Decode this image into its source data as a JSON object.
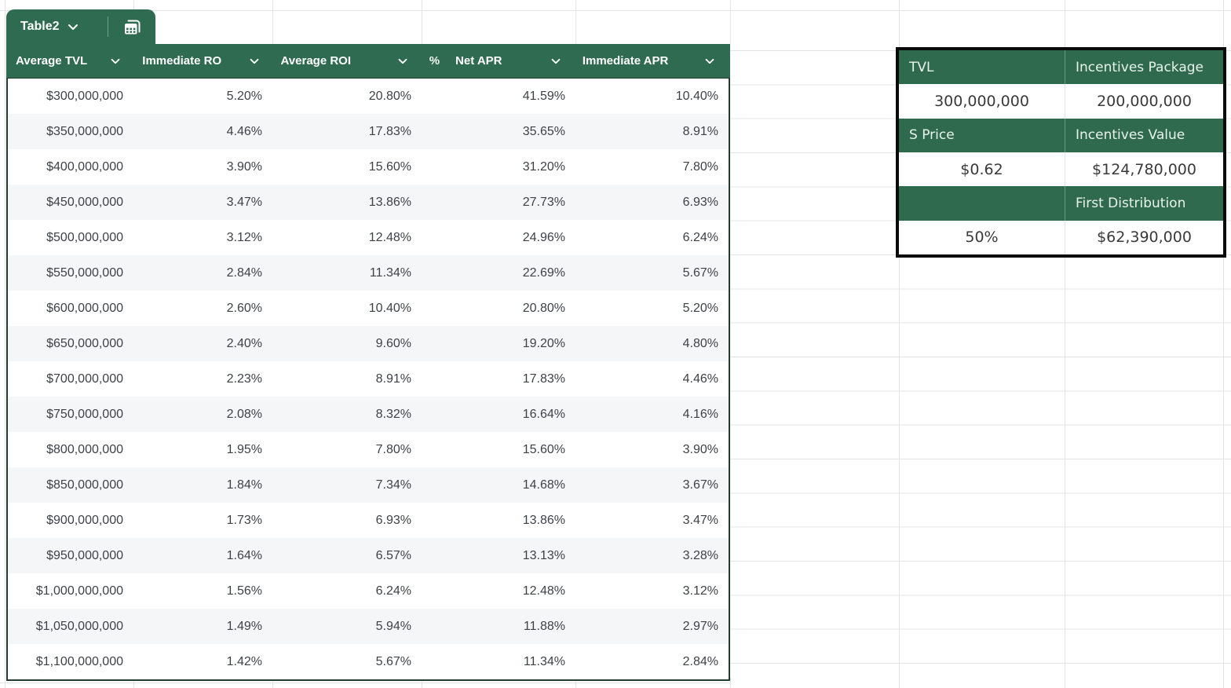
{
  "table_chip": {
    "name": "Table2"
  },
  "main_table": {
    "columns": [
      {
        "label": "Average TVL"
      },
      {
        "label": "Immediate RO"
      },
      {
        "label": "Average ROI"
      },
      {
        "label": "Net APR",
        "type_icon": "%"
      },
      {
        "label": "Immediate APR"
      }
    ],
    "rows": [
      [
        "$300,000,000",
        "5.20%",
        "20.80%",
        "41.59%",
        "10.40%"
      ],
      [
        "$350,000,000",
        "4.46%",
        "17.83%",
        "35.65%",
        "8.91%"
      ],
      [
        "$400,000,000",
        "3.90%",
        "15.60%",
        "31.20%",
        "7.80%"
      ],
      [
        "$450,000,000",
        "3.47%",
        "13.86%",
        "27.73%",
        "6.93%"
      ],
      [
        "$500,000,000",
        "3.12%",
        "12.48%",
        "24.96%",
        "6.24%"
      ],
      [
        "$550,000,000",
        "2.84%",
        "11.34%",
        "22.69%",
        "5.67%"
      ],
      [
        "$600,000,000",
        "2.60%",
        "10.40%",
        "20.80%",
        "5.20%"
      ],
      [
        "$650,000,000",
        "2.40%",
        "9.60%",
        "19.20%",
        "4.80%"
      ],
      [
        "$700,000,000",
        "2.23%",
        "8.91%",
        "17.83%",
        "4.46%"
      ],
      [
        "$750,000,000",
        "2.08%",
        "8.32%",
        "16.64%",
        "4.16%"
      ],
      [
        "$800,000,000",
        "1.95%",
        "7.80%",
        "15.60%",
        "3.90%"
      ],
      [
        "$850,000,000",
        "1.84%",
        "7.34%",
        "14.68%",
        "3.67%"
      ],
      [
        "$900,000,000",
        "1.73%",
        "6.93%",
        "13.86%",
        "3.47%"
      ],
      [
        "$950,000,000",
        "1.64%",
        "6.57%",
        "13.13%",
        "3.28%"
      ],
      [
        "$1,000,000,000",
        "1.56%",
        "6.24%",
        "12.48%",
        "3.12%"
      ],
      [
        "$1,050,000,000",
        "1.49%",
        "5.94%",
        "11.88%",
        "2.97%"
      ],
      [
        "$1,100,000,000",
        "1.42%",
        "5.67%",
        "11.34%",
        "2.84%"
      ]
    ]
  },
  "summary_box": {
    "rows": [
      {
        "style": "header",
        "cells": [
          "TVL",
          "Incentives Package"
        ]
      },
      {
        "style": "value",
        "cells": [
          "300,000,000",
          "200,000,000"
        ]
      },
      {
        "style": "header",
        "cells": [
          "S Price",
          "Incentives Value"
        ]
      },
      {
        "style": "value",
        "cells": [
          "$0.62",
          "$124,780,000"
        ]
      },
      {
        "style": "header",
        "cells": [
          "",
          "First Distribution"
        ]
      },
      {
        "style": "value",
        "cells": [
          "50%",
          "$62,390,000"
        ]
      }
    ]
  },
  "colors": {
    "table_green": "#2e6b50",
    "box_green": "#2f6a4e",
    "band_gray": "#f5f6f8",
    "grid_line": "#e2e4e7"
  }
}
